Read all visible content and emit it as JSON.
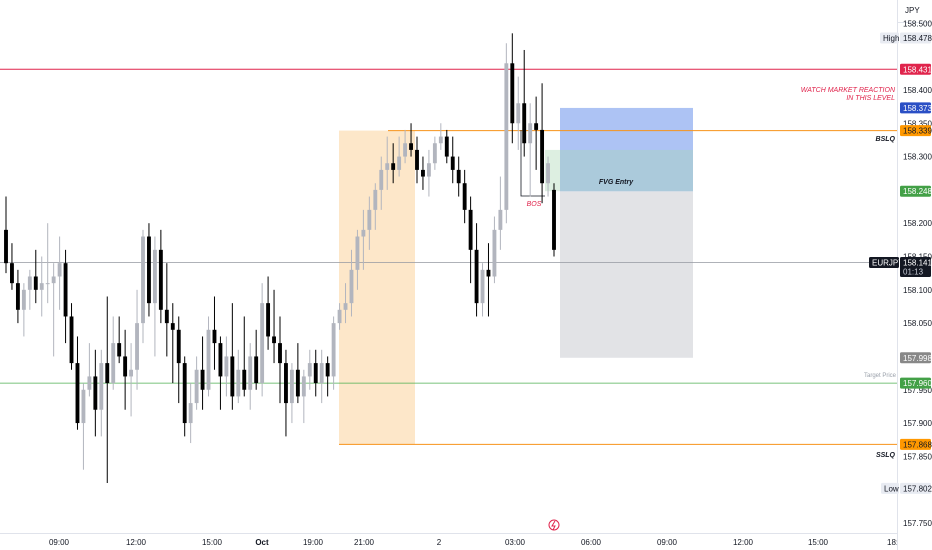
{
  "currency": "JPY",
  "chart_data": {
    "type": "candlestick",
    "symbol": "EURJPY",
    "ylim": [
      157.735,
      158.535
    ],
    "y_ticks": [
      "158.500",
      "158.400",
      "158.350",
      "158.300",
      "158.200",
      "158.150",
      "158.100",
      "158.050",
      "157.950",
      "157.900",
      "157.850",
      "157.750"
    ],
    "x_ticks": [
      "09:00",
      "12:00",
      "15:00",
      "Oct",
      "19:00",
      "21:00",
      "2",
      "03:00",
      "06:00",
      "09:00",
      "12:00",
      "15:00",
      "18:0"
    ],
    "candles": [
      [
        158.19,
        158.24,
        158.125,
        158.14
      ],
      [
        158.14,
        158.17,
        158.1,
        158.11
      ],
      [
        158.11,
        158.13,
        158.05,
        158.07
      ],
      [
        158.07,
        158.11,
        158.03,
        158.1
      ],
      [
        158.1,
        158.13,
        158.07,
        158.12
      ],
      [
        158.12,
        158.16,
        158.08,
        158.1
      ],
      [
        158.1,
        158.15,
        158.06,
        158.11
      ],
      [
        158.11,
        158.2,
        158.08,
        158.11
      ],
      [
        158.11,
        158.14,
        158.0,
        158.12
      ],
      [
        158.12,
        158.18,
        158.07,
        158.14
      ],
      [
        158.14,
        158.16,
        158.02,
        158.06
      ],
      [
        158.06,
        158.08,
        157.98,
        157.99
      ],
      [
        157.99,
        158.03,
        157.89,
        157.9
      ],
      [
        157.9,
        157.96,
        157.83,
        157.95
      ],
      [
        157.95,
        158.02,
        157.94,
        157.97
      ],
      [
        157.97,
        158.01,
        157.88,
        157.92
      ],
      [
        157.92,
        158.01,
        157.88,
        157.99
      ],
      [
        157.99,
        158.09,
        157.81,
        157.96
      ],
      [
        157.96,
        158.06,
        157.95,
        158.02
      ],
      [
        158.02,
        158.06,
        157.99,
        158.0
      ],
      [
        158.0,
        158.04,
        157.92,
        157.97
      ],
      [
        157.97,
        158.02,
        157.91,
        157.98
      ],
      [
        157.98,
        158.1,
        157.95,
        158.05
      ],
      [
        158.05,
        158.19,
        158.02,
        158.18
      ],
      [
        158.18,
        158.2,
        158.06,
        158.08
      ],
      [
        158.08,
        158.18,
        158.0,
        158.16
      ],
      [
        158.16,
        158.19,
        158.05,
        158.07
      ],
      [
        158.07,
        158.14,
        158.0,
        158.05
      ],
      [
        158.05,
        158.08,
        157.96,
        158.04
      ],
      [
        158.04,
        158.06,
        157.93,
        157.99
      ],
      [
        157.99,
        158.0,
        157.88,
        157.9
      ],
      [
        157.9,
        157.96,
        157.87,
        157.93
      ],
      [
        157.93,
        158.0,
        157.92,
        157.98
      ],
      [
        157.98,
        158.03,
        157.92,
        157.95
      ],
      [
        157.95,
        158.06,
        157.94,
        158.04
      ],
      [
        158.04,
        158.09,
        157.98,
        158.02
      ],
      [
        158.02,
        158.03,
        157.92,
        157.97
      ],
      [
        157.97,
        158.03,
        157.94,
        158.0
      ],
      [
        158.0,
        158.08,
        157.92,
        157.94
      ],
      [
        157.94,
        158.01,
        157.93,
        157.98
      ],
      [
        157.98,
        158.06,
        157.94,
        157.95
      ],
      [
        157.95,
        158.02,
        157.92,
        158.0
      ],
      [
        158.0,
        158.04,
        157.95,
        157.96
      ],
      [
        157.96,
        158.11,
        157.94,
        158.08
      ],
      [
        158.08,
        158.12,
        158.01,
        158.03
      ],
      [
        158.03,
        158.1,
        157.99,
        158.02
      ],
      [
        158.02,
        158.06,
        157.93,
        157.99
      ],
      [
        157.99,
        158.01,
        157.88,
        157.93
      ],
      [
        157.93,
        157.99,
        157.9,
        157.98
      ],
      [
        157.98,
        158.02,
        157.93,
        157.94
      ],
      [
        157.94,
        157.98,
        157.9,
        157.97
      ],
      [
        157.97,
        158.01,
        157.95,
        157.99
      ],
      [
        157.99,
        158.01,
        157.94,
        157.96
      ],
      [
        157.96,
        158.01,
        157.93,
        157.99
      ],
      [
        157.99,
        158.0,
        157.94,
        157.97
      ],
      [
        157.97,
        158.06,
        157.95,
        158.05
      ],
      [
        158.05,
        158.08,
        158.04,
        158.07
      ],
      [
        158.07,
        158.11,
        158.05,
        158.08
      ],
      [
        158.08,
        158.16,
        158.06,
        158.13
      ],
      [
        158.13,
        158.19,
        158.1,
        158.18
      ],
      [
        158.18,
        158.22,
        158.13,
        158.19
      ],
      [
        158.19,
        158.24,
        158.16,
        158.22
      ],
      [
        158.22,
        158.26,
        158.19,
        158.25
      ],
      [
        158.25,
        158.3,
        158.22,
        158.28
      ],
      [
        158.28,
        158.33,
        158.25,
        158.29
      ],
      [
        158.29,
        158.32,
        158.26,
        158.28
      ],
      [
        158.28,
        158.33,
        158.27,
        158.3
      ],
      [
        158.3,
        158.34,
        158.29,
        158.32
      ],
      [
        158.32,
        158.35,
        158.3,
        158.31
      ],
      [
        158.31,
        158.33,
        158.26,
        158.28
      ],
      [
        158.28,
        158.3,
        158.25,
        158.27
      ],
      [
        158.27,
        158.31,
        158.24,
        158.29
      ],
      [
        158.29,
        158.33,
        158.28,
        158.32
      ],
      [
        158.32,
        158.35,
        158.31,
        158.33
      ],
      [
        158.33,
        158.34,
        158.29,
        158.3
      ],
      [
        158.3,
        158.33,
        158.26,
        158.28
      ],
      [
        158.28,
        158.3,
        158.24,
        158.26
      ],
      [
        158.26,
        158.28,
        158.2,
        158.22
      ],
      [
        158.22,
        158.24,
        158.11,
        158.16
      ],
      [
        158.16,
        158.2,
        158.06,
        158.08
      ],
      [
        158.08,
        158.14,
        158.06,
        158.13
      ],
      [
        158.13,
        158.17,
        158.06,
        158.12
      ],
      [
        158.12,
        158.21,
        158.11,
        158.19
      ],
      [
        158.19,
        158.27,
        158.16,
        158.22
      ],
      [
        158.22,
        158.47,
        158.2,
        158.44
      ],
      [
        158.44,
        158.485,
        158.32,
        158.35
      ],
      [
        158.35,
        158.42,
        158.31,
        158.38
      ],
      [
        158.38,
        158.46,
        158.3,
        158.32
      ],
      [
        158.32,
        158.38,
        158.24,
        158.35
      ],
      [
        158.35,
        158.39,
        158.28,
        158.34
      ],
      [
        158.34,
        158.41,
        158.23,
        158.26
      ],
      [
        158.26,
        158.3,
        158.24,
        158.29
      ],
      [
        158.25,
        158.26,
        158.15,
        158.16
      ]
    ]
  },
  "price_axis": {
    "high_label": "High",
    "high_value": "158.478",
    "red_value": "158.431",
    "blue_value": "158.373",
    "bslq_value": "158.339",
    "green_value": "158.248",
    "symbol_label": "EURJPY",
    "current_value": "158.141",
    "countdown": "01:13",
    "grey_value": "157.998",
    "target_label": "Target Price",
    "target_value": "157.960",
    "sslq_value": "157.868",
    "low_label": "Low",
    "low_value": "157.802"
  },
  "levels": {
    "red_line": 158.431,
    "bslq": 158.339,
    "current": 158.141,
    "target": 157.96,
    "sslq": 157.868
  },
  "annotations": {
    "watch_line1": "WATCH MARKET REACTION",
    "watch_line2": "IN THIS LEVEL",
    "bslq": "BSLQ",
    "sslq": "SSLQ",
    "fvg": "FVG Entry",
    "bos": "BOS"
  },
  "zones": {
    "session": {
      "top": 158.339,
      "bottom": 157.868,
      "color": "#fde3c0"
    },
    "fvg_blue": {
      "top": 158.373,
      "bottom": 158.248,
      "color": "#9fb8f2"
    },
    "fvg_green": {
      "top": 158.31,
      "bottom": 158.248,
      "color": "#a9d0c6"
    },
    "grey_box": {
      "top": 158.248,
      "bottom": 157.998,
      "color": "#e2e3e6"
    }
  },
  "colors": {
    "bull": "#b2b5be",
    "bear": "#000000",
    "red": "#e0244c",
    "orange": "#f7931a",
    "green": "#4caf50",
    "blue": "#2962ff",
    "sslq_tag": "#ff9800",
    "blue_tag": "#2a4fc5",
    "green_tag": "#43a047",
    "grey_tag": "#888888",
    "current_tag": "#131722"
  }
}
